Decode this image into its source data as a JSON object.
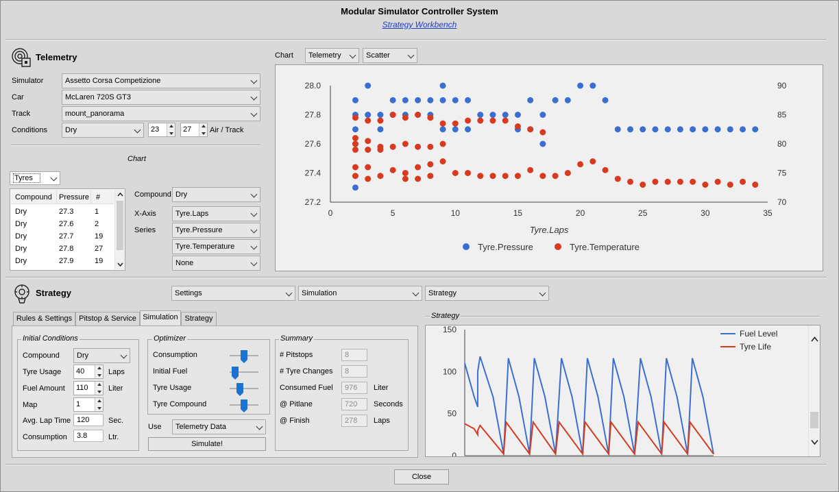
{
  "window": {
    "title": "Modular Simulator Controller System",
    "subtitle": "Strategy Workbench"
  },
  "telemetry": {
    "heading": "Telemetry",
    "simulator_label": "Simulator",
    "simulator": "Assetto Corsa Competizione",
    "car_label": "Car",
    "car": "McLaren 720S GT3",
    "track_label": "Track",
    "track": "mount_panorama",
    "conditions_label": "Conditions",
    "conditions": "Dry",
    "air_temp": "23",
    "track_temp": "27",
    "air_track_label": "Air / Track",
    "chart_section_label": "Chart",
    "data_type": "Tyres",
    "table_headers": [
      "Compound",
      "Pressure",
      "#"
    ],
    "table_rows": [
      [
        "Dry",
        "27.3",
        "1"
      ],
      [
        "Dry",
        "27.6",
        "2"
      ],
      [
        "Dry",
        "27.7",
        "19"
      ],
      [
        "Dry",
        "27.8",
        "27"
      ],
      [
        "Dry",
        "27.9",
        "19"
      ]
    ],
    "compound_label": "Compound",
    "compound": "Dry",
    "xaxis_label": "X-Axis",
    "xaxis": "Tyre.Laps",
    "series_label": "Series",
    "series1": "Tyre.Pressure",
    "series2": "Tyre.Temperature",
    "series3": "None"
  },
  "chart_controls": {
    "label": "Chart",
    "source": "Telemetry",
    "type": "Scatter"
  },
  "chart_data": [
    {
      "type": "scatter",
      "xlabel": "Tyre.Laps",
      "xlim": [
        0,
        35
      ],
      "ylim_left": [
        27.2,
        28.0
      ],
      "ylim_right": [
        70,
        90
      ],
      "xticks": [
        "0",
        "5",
        "10",
        "15",
        "20",
        "25",
        "30",
        "35"
      ],
      "yticks_left": [
        "27.2",
        "27.4",
        "27.6",
        "27.8",
        "28.0"
      ],
      "yticks_right": [
        "70",
        "75",
        "80",
        "85",
        "90"
      ],
      "legend": "bottom",
      "series": [
        {
          "name": "Tyre.Pressure",
          "color": "#3a6fd0",
          "axis": "left",
          "points": [
            [
              2,
              27.3
            ],
            [
              2,
              27.6
            ],
            [
              2,
              27.7
            ],
            [
              2,
              27.8
            ],
            [
              2,
              27.9
            ],
            [
              3,
              28.0
            ],
            [
              3,
              27.8
            ],
            [
              4,
              27.7
            ],
            [
              4,
              27.8
            ],
            [
              5,
              27.8
            ],
            [
              5,
              27.9
            ],
            [
              6,
              27.8
            ],
            [
              6,
              27.9
            ],
            [
              7,
              27.8
            ],
            [
              7,
              27.9
            ],
            [
              8,
              27.8
            ],
            [
              8,
              27.9
            ],
            [
              9,
              28.0
            ],
            [
              9,
              27.9
            ],
            [
              9,
              27.7
            ],
            [
              10,
              27.9
            ],
            [
              10,
              27.7
            ],
            [
              11,
              27.9
            ],
            [
              11,
              27.7
            ],
            [
              12,
              27.8
            ],
            [
              13,
              27.8
            ],
            [
              14,
              27.8
            ],
            [
              15,
              27.8
            ],
            [
              15,
              27.7
            ],
            [
              16,
              27.9
            ],
            [
              16,
              27.7
            ],
            [
              17,
              27.8
            ],
            [
              17,
              27.6
            ],
            [
              18,
              27.9
            ],
            [
              19,
              27.9
            ],
            [
              20,
              28.0
            ],
            [
              21,
              28.0
            ],
            [
              22,
              27.9
            ],
            [
              23,
              27.7
            ],
            [
              24,
              27.7
            ],
            [
              25,
              27.7
            ],
            [
              26,
              27.7
            ],
            [
              27,
              27.7
            ],
            [
              28,
              27.7
            ],
            [
              29,
              27.7
            ],
            [
              30,
              27.7
            ],
            [
              31,
              27.7
            ],
            [
              32,
              27.7
            ],
            [
              33,
              27.7
            ],
            [
              34,
              27.7
            ]
          ]
        },
        {
          "name": "Tyre.Temperature",
          "color": "#d63a1f",
          "axis": "right",
          "points": [
            [
              2,
              84.5
            ],
            [
              2,
              81
            ],
            [
              2,
              80
            ],
            [
              2,
              79
            ],
            [
              2,
              76
            ],
            [
              2,
              74.5
            ],
            [
              3,
              84
            ],
            [
              3,
              80.5
            ],
            [
              3,
              79
            ],
            [
              3,
              76
            ],
            [
              3,
              74
            ],
            [
              4,
              84
            ],
            [
              4,
              79
            ],
            [
              4,
              74.5
            ],
            [
              4,
              79.5
            ],
            [
              5,
              85
            ],
            [
              5,
              79.5
            ],
            [
              5,
              75.5
            ],
            [
              6,
              84.5
            ],
            [
              6,
              80
            ],
            [
              6,
              75
            ],
            [
              6,
              74
            ],
            [
              7,
              85
            ],
            [
              7,
              79.5
            ],
            [
              7,
              76
            ],
            [
              7,
              74
            ],
            [
              8,
              84.5
            ],
            [
              8,
              79.5
            ],
            [
              8,
              76.5
            ],
            [
              8,
              74.5
            ],
            [
              9,
              83.5
            ],
            [
              9,
              80
            ],
            [
              9,
              77
            ],
            [
              10,
              83.5
            ],
            [
              10,
              75
            ],
            [
              11,
              84
            ],
            [
              11,
              75
            ],
            [
              12,
              84
            ],
            [
              12,
              74.5
            ],
            [
              13,
              84
            ],
            [
              13,
              74.5
            ],
            [
              14,
              84
            ],
            [
              14,
              74.5
            ],
            [
              15,
              83
            ],
            [
              15,
              74.5
            ],
            [
              16,
              82.5
            ],
            [
              16,
              75.5
            ],
            [
              17,
              82
            ],
            [
              17,
              74.5
            ],
            [
              18,
              74.5
            ],
            [
              19,
              75
            ],
            [
              20,
              76.5
            ],
            [
              21,
              77
            ],
            [
              22,
              75.5
            ],
            [
              23,
              74
            ],
            [
              24,
              73.5
            ],
            [
              25,
              73
            ],
            [
              26,
              73.5
            ],
            [
              27,
              73.5
            ],
            [
              28,
              73.5
            ],
            [
              29,
              73.5
            ],
            [
              30,
              73
            ],
            [
              31,
              73.5
            ],
            [
              32,
              73
            ],
            [
              33,
              73.5
            ],
            [
              34,
              73
            ]
          ]
        }
      ]
    },
    {
      "type": "line",
      "ylim": [
        0,
        150
      ],
      "yticks": [
        "0",
        "50",
        "100",
        "150"
      ],
      "legend": "top-right",
      "series": [
        {
          "name": "Fuel Level",
          "color": "#3a6fd0",
          "points": [
            [
              0,
              110
            ],
            [
              8,
              70
            ],
            [
              11,
              58
            ],
            [
              11,
              100
            ],
            [
              13,
              118
            ],
            [
              24,
              70
            ],
            [
              33,
              2
            ],
            [
              37,
              116
            ],
            [
              46,
              70
            ],
            [
              55,
              2
            ],
            [
              59,
              116
            ],
            [
              68,
              70
            ],
            [
              77,
              2
            ],
            [
              82,
              116
            ],
            [
              91,
              70
            ],
            [
              100,
              2
            ],
            [
              104,
              116
            ],
            [
              113,
              70
            ],
            [
              122,
              2
            ],
            [
              126,
              116
            ],
            [
              135,
              70
            ],
            [
              144,
              2
            ],
            [
              149,
              116
            ],
            [
              158,
              70
            ],
            [
              167,
              2
            ],
            [
              171,
              116
            ],
            [
              180,
              70
            ],
            [
              189,
              2
            ],
            [
              193,
              116
            ],
            [
              202,
              70
            ],
            [
              211,
              2
            ]
          ]
        },
        {
          "name": "Tyre Life",
          "color": "#d63a1f",
          "points": [
            [
              0,
              38
            ],
            [
              8,
              32
            ],
            [
              11,
              25
            ],
            [
              11,
              30
            ],
            [
              13,
              36
            ],
            [
              33,
              2
            ],
            [
              35,
              40
            ],
            [
              55,
              2
            ],
            [
              58,
              40
            ],
            [
              77,
              2
            ],
            [
              80,
              40
            ],
            [
              100,
              2
            ],
            [
              102,
              40
            ],
            [
              122,
              2
            ],
            [
              124,
              40
            ],
            [
              144,
              2
            ],
            [
              147,
              40
            ],
            [
              167,
              2
            ],
            [
              169,
              40
            ],
            [
              189,
              2
            ],
            [
              191,
              40
            ],
            [
              211,
              2
            ]
          ]
        }
      ]
    }
  ],
  "strategy": {
    "heading": "Strategy",
    "menu_settings": "Settings",
    "menu_simulation": "Simulation",
    "menu_strategy": "Strategy",
    "tabs": [
      "Rules & Settings",
      "Pitstop & Service",
      "Simulation",
      "Strategy"
    ],
    "initial_conditions": {
      "title": "Initial Conditions",
      "compound_label": "Compound",
      "compound": "Dry",
      "tyre_usage_label": "Tyre Usage",
      "tyre_usage": "40",
      "tyre_usage_unit": "Laps",
      "fuel_amount_label": "Fuel Amount",
      "fuel_amount": "110",
      "fuel_amount_unit": "Liter",
      "map_label": "Map",
      "map": "1",
      "avg_lap_label": "Avg. Lap Time",
      "avg_lap": "120",
      "avg_lap_unit": "Sec.",
      "consumption_label": "Consumption",
      "consumption": "3.8",
      "consumption_unit": "Ltr."
    },
    "optimizer": {
      "title": "Optimizer",
      "sliders": [
        {
          "label": "Consumption",
          "level": 0.5
        },
        {
          "label": "Initial Fuel",
          "level": 0.2
        },
        {
          "label": "Tyre Usage",
          "level": 0.35
        },
        {
          "label": "Tyre Compound",
          "level": 0.5
        }
      ],
      "use_label": "Use",
      "use_value": "Telemetry Data",
      "simulate_label": "Simulate!"
    },
    "summary": {
      "title": "Summary",
      "rows": [
        {
          "label": "# Pitstops",
          "value": "8",
          "unit": ""
        },
        {
          "label": "# Tyre Changes",
          "value": "8",
          "unit": ""
        },
        {
          "label": "Consumed Fuel",
          "value": "976",
          "unit": "Liter"
        },
        {
          "label": "@ Pitlane",
          "value": "720",
          "unit": "Seconds"
        },
        {
          "label": "@ Finish",
          "value": "278",
          "unit": "Laps"
        }
      ]
    },
    "chart_group_title": "Strategy"
  },
  "footer": {
    "close_label": "Close"
  }
}
